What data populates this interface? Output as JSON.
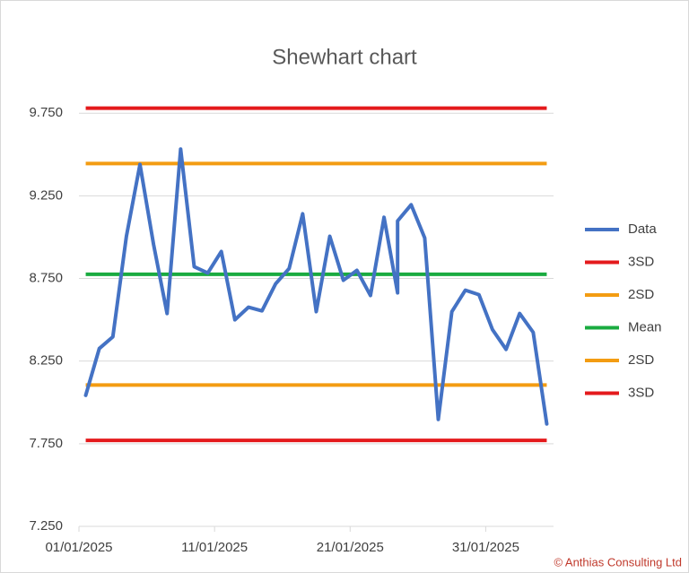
{
  "chart_data": {
    "type": "line",
    "title": "Shewhart chart",
    "x": [
      "2025-01-01",
      "2025-01-02",
      "2025-01-03",
      "2025-01-04",
      "2025-01-05",
      "2025-01-06",
      "2025-01-07",
      "2025-01-08",
      "2025-01-09",
      "2025-01-10",
      "2025-01-11",
      "2025-01-12",
      "2025-01-13",
      "2025-01-14",
      "2025-01-15",
      "2025-01-16",
      "2025-01-17",
      "2025-01-18",
      "2025-01-19",
      "2025-01-20",
      "2025-01-21",
      "2025-01-22",
      "2025-01-23",
      "2025-01-24",
      "2025-01-24",
      "2025-01-25",
      "2025-01-26",
      "2025-01-27",
      "2025-01-28",
      "2025-01-29",
      "2025-01-30",
      "2025-01-31",
      "2025-02-01",
      "2025-02-02",
      "2025-02-03",
      "2025-02-04"
    ],
    "series": [
      {
        "name": "Data",
        "color": "#4472c4",
        "values": [
          8.043,
          8.326,
          8.397,
          9.005,
          9.44,
          8.957,
          8.538,
          9.533,
          8.821,
          8.783,
          8.913,
          8.5,
          8.576,
          8.554,
          8.717,
          8.81,
          9.141,
          8.549,
          9.005,
          8.739,
          8.799,
          8.647,
          9.12,
          8.663,
          9.098,
          9.196,
          8.995,
          7.897,
          8.549,
          8.679,
          8.652,
          8.44,
          8.321,
          8.538,
          8.424,
          7.87
        ]
      },
      {
        "name": "3SD",
        "color": "#e41a1c",
        "value": 9.78
      },
      {
        "name": "2SD",
        "color": "#f39c12",
        "value": 9.445
      },
      {
        "name": "Mean",
        "color": "#1aab40",
        "value": 8.775
      },
      {
        "name": "2SD",
        "color": "#f39c12",
        "value": 8.105
      },
      {
        "name": "3SD",
        "color": "#e41a1c",
        "value": 7.77
      }
    ],
    "xlim": [
      "2025-01-01",
      "2025-02-05"
    ],
    "xticks": [
      {
        "value": "2025-01-01",
        "label": "01/01/2025"
      },
      {
        "value": "2025-01-11",
        "label": "11/01/2025"
      },
      {
        "value": "2025-01-21",
        "label": "21/01/2025"
      },
      {
        "value": "2025-01-31",
        "label": "31/01/2025"
      }
    ],
    "ylim": [
      7.25,
      9.8
    ],
    "yticks": [
      {
        "value": 7.25,
        "label": "7.250"
      },
      {
        "value": 7.75,
        "label": "7.750"
      },
      {
        "value": 8.25,
        "label": "8.250"
      },
      {
        "value": 8.75,
        "label": "8.750"
      },
      {
        "value": 9.25,
        "label": "9.250"
      },
      {
        "value": 9.75,
        "label": "9.750"
      }
    ],
    "grid": true,
    "legend": "right",
    "credit": "© Anthias Consulting Ltd"
  }
}
